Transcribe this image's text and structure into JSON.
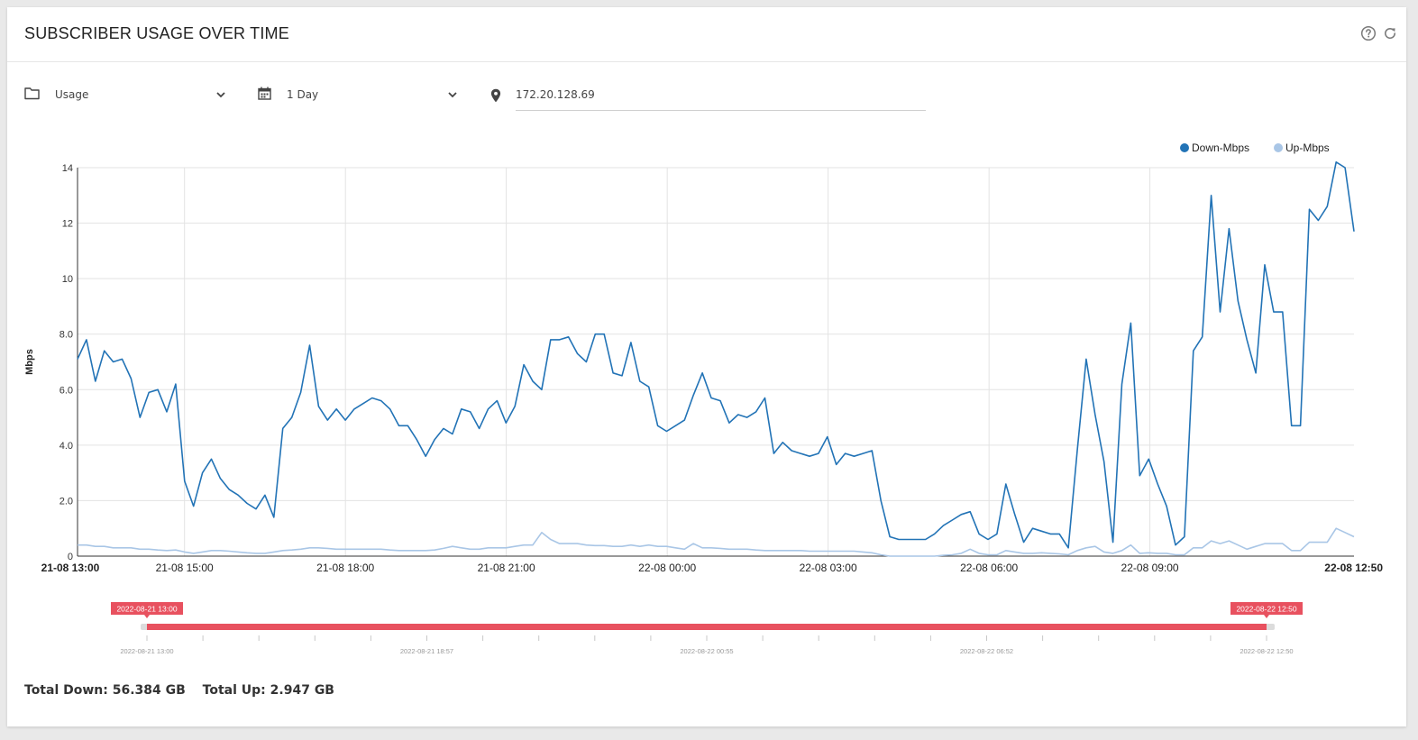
{
  "header": {
    "title": "SUBSCRIBER USAGE OVER TIME",
    "help_icon": "question-circle-icon",
    "refresh_icon": "refresh-icon"
  },
  "toolbar": {
    "metric": {
      "icon": "folder-icon",
      "value": "Usage"
    },
    "period": {
      "icon": "calendar-icon",
      "value": "1 Day"
    },
    "location": {
      "icon": "map-marker-icon",
      "value": "172.20.128.69"
    }
  },
  "chart_data": {
    "type": "line",
    "ylabel": "Mbps",
    "ylim": [
      0,
      14
    ],
    "yticks": [
      "0",
      "2.0",
      "4.0",
      "6.0",
      "8.0",
      "10",
      "12",
      "14"
    ],
    "xticks": [
      "21-08 13:00",
      "21-08 15:00",
      "21-08 18:00",
      "21-08 21:00",
      "22-08 00:00",
      "22-08 03:00",
      "22-08 06:00",
      "22-08 09:00",
      "22-08 12:50"
    ],
    "grid": true,
    "legend_position": "top-right",
    "colors": {
      "down": "#2273b6",
      "up": "#a9c6e6"
    },
    "series": [
      {
        "name": "Down-Mbps",
        "values": [
          7.1,
          7.8,
          6.3,
          7.4,
          7.0,
          7.1,
          6.4,
          5.0,
          5.9,
          6.0,
          5.2,
          6.2,
          2.7,
          1.8,
          3.0,
          3.5,
          2.8,
          2.4,
          2.2,
          1.9,
          1.7,
          2.2,
          1.4,
          4.6,
          5.0,
          5.9,
          7.6,
          5.4,
          4.9,
          5.3,
          4.9,
          5.3,
          5.5,
          5.7,
          5.6,
          5.3,
          4.7,
          4.7,
          4.2,
          3.6,
          4.2,
          4.6,
          4.4,
          5.3,
          5.2,
          4.6,
          5.3,
          5.6,
          4.8,
          5.4,
          6.9,
          6.3,
          6.0,
          7.8,
          7.8,
          7.9,
          7.3,
          7.0,
          8.0,
          8.0,
          6.6,
          6.5,
          7.7,
          6.3,
          6.1,
          4.7,
          4.5,
          4.7,
          4.9,
          5.8,
          6.6,
          5.7,
          5.6,
          4.8,
          5.1,
          5.0,
          5.2,
          5.7,
          3.7,
          4.1,
          3.8,
          3.7,
          3.6,
          3.7,
          4.3,
          3.3,
          3.7,
          3.6,
          3.7,
          3.8,
          2.0,
          0.7,
          0.6,
          0.6,
          0.6,
          0.6,
          0.8,
          1.1,
          1.3,
          1.5,
          1.6,
          0.8,
          0.6,
          0.8,
          2.6,
          1.5,
          0.5,
          1.0,
          0.9,
          0.8,
          0.8,
          0.3,
          3.8,
          7.1,
          5.1,
          3.4,
          0.5,
          6.2,
          8.4,
          2.9,
          3.5,
          2.6,
          1.8,
          0.4,
          0.7,
          7.4,
          7.9,
          13.0,
          8.8,
          11.8,
          9.2,
          7.8,
          6.6,
          10.5,
          8.8,
          8.8,
          4.7,
          4.7,
          12.5,
          12.1,
          12.6,
          14.2,
          14.0,
          11.7
        ]
      },
      {
        "name": "Up-Mbps",
        "values": [
          0.4,
          0.4,
          0.35,
          0.35,
          0.3,
          0.3,
          0.3,
          0.25,
          0.25,
          0.22,
          0.2,
          0.22,
          0.15,
          0.1,
          0.15,
          0.2,
          0.2,
          0.18,
          0.15,
          0.12,
          0.1,
          0.1,
          0.15,
          0.2,
          0.22,
          0.25,
          0.3,
          0.3,
          0.28,
          0.25,
          0.25,
          0.25,
          0.25,
          0.25,
          0.25,
          0.22,
          0.2,
          0.2,
          0.2,
          0.2,
          0.22,
          0.28,
          0.35,
          0.3,
          0.25,
          0.25,
          0.3,
          0.3,
          0.3,
          0.35,
          0.4,
          0.4,
          0.85,
          0.6,
          0.45,
          0.45,
          0.45,
          0.4,
          0.38,
          0.38,
          0.35,
          0.35,
          0.4,
          0.35,
          0.4,
          0.35,
          0.35,
          0.3,
          0.25,
          0.45,
          0.3,
          0.3,
          0.28,
          0.25,
          0.25,
          0.25,
          0.22,
          0.2,
          0.2,
          0.2,
          0.2,
          0.2,
          0.18,
          0.18,
          0.18,
          0.18,
          0.18,
          0.18,
          0.15,
          0.12,
          0.05,
          0.0,
          0.0,
          0.0,
          0.0,
          0.0,
          0.0,
          0.03,
          0.05,
          0.1,
          0.25,
          0.1,
          0.05,
          0.05,
          0.2,
          0.15,
          0.1,
          0.1,
          0.12,
          0.1,
          0.08,
          0.05,
          0.2,
          0.3,
          0.35,
          0.15,
          0.1,
          0.2,
          0.4,
          0.1,
          0.12,
          0.1,
          0.1,
          0.05,
          0.05,
          0.3,
          0.3,
          0.55,
          0.45,
          0.55,
          0.4,
          0.25,
          0.35,
          0.45,
          0.45,
          0.45,
          0.2,
          0.2,
          0.5,
          0.5,
          0.5,
          1.0,
          0.85,
          0.7
        ]
      }
    ]
  },
  "range_slider": {
    "from_label": "2022-08-21 13:00",
    "to_label": "2022-08-22 12:50",
    "from_fraction": 0.0,
    "to_fraction": 1.0,
    "axis_labels": [
      "2022-08-21 13:00",
      "2022-08-21 18:57",
      "2022-08-22 00:55",
      "2022-08-22 06:52",
      "2022-08-22 12:50"
    ],
    "color": "#e8515f"
  },
  "totals": {
    "down": "Total Down: 56.384 GB",
    "up": "Total Up: 2.947 GB"
  }
}
